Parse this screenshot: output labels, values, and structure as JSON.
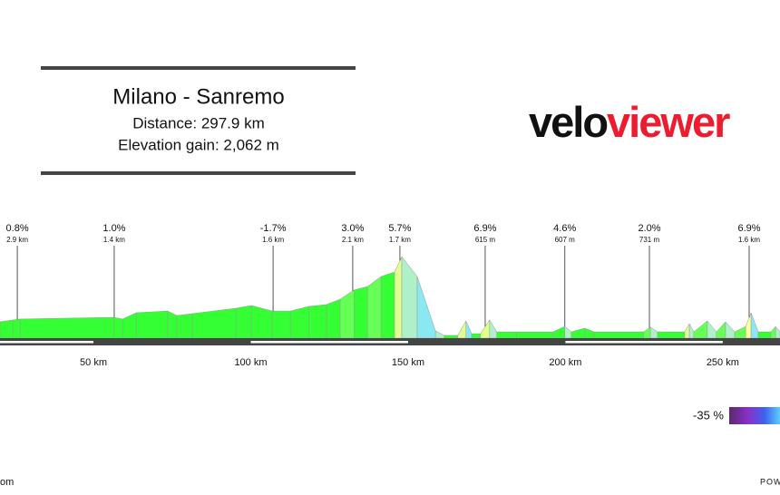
{
  "header": {
    "title": "Milano - Sanremo",
    "distance": "Distance: 297.9 km",
    "elevation_gain": "Elevation gain: 2,062 m"
  },
  "logo": {
    "part1": "velo",
    "part2": "viewer"
  },
  "chart_data": {
    "type": "area",
    "x": [
      20.3,
      24.4,
      26.7,
      56.4,
      59.3,
      63.6,
      73.6,
      76.5,
      81.4,
      95.3,
      100.2,
      106.8,
      112.6,
      118.4,
      124.1,
      128.4,
      132.8,
      137.1,
      141.4,
      145.7,
      148.0,
      152.9,
      158.7,
      161.5,
      165.8,
      168.4,
      170.2,
      173.0,
      175.9,
      178.2,
      184.5,
      196.1,
      199.8,
      201.9,
      206.2,
      209.1,
      224.9,
      227.0,
      229.3,
      237.9,
      239.4,
      240.8,
      245.1,
      248.0,
      250.9,
      253.8,
      257.3,
      259.0,
      261.3,
      265.3,
      266.8,
      268.2
    ],
    "values": [
      106,
      118,
      124,
      135,
      124,
      165,
      176,
      147,
      159,
      194,
      212,
      176,
      176,
      206,
      218,
      253,
      312,
      335,
      400,
      429,
      529,
      400,
      47,
      18,
      18,
      112,
      29,
      29,
      118,
      41,
      41,
      41,
      76,
      41,
      65,
      41,
      41,
      71,
      41,
      41,
      94,
      41,
      112,
      41,
      106,
      41,
      76,
      165,
      41,
      41,
      76,
      41
    ],
    "xlim": [
      20.3,
      268.2
    ],
    "ylim": [
      0,
      600
    ],
    "xticks": [
      {
        "value": 50,
        "label": "50 km"
      },
      {
        "value": 100,
        "label": "100 km"
      },
      {
        "value": 150,
        "label": "150 km"
      },
      {
        "value": 200,
        "label": "200 km"
      },
      {
        "value": 250,
        "label": "250 km"
      }
    ],
    "annotations": [
      {
        "x": 25.8,
        "grade": "0.8%",
        "length": "2.9 km"
      },
      {
        "x": 56.6,
        "grade": "1.0%",
        "length": "1.4 km"
      },
      {
        "x": 107.1,
        "grade": "-1.7%",
        "length": "1.6 km"
      },
      {
        "x": 132.4,
        "grade": "3.0%",
        "length": "2.1 km"
      },
      {
        "x": 147.4,
        "grade": "5.7%",
        "length": "1.7 km"
      },
      {
        "x": 174.5,
        "grade": "6.9%",
        "length": "615 m"
      },
      {
        "x": 199.8,
        "grade": "4.6%",
        "length": "607 m"
      },
      {
        "x": 226.7,
        "grade": "2.0%",
        "length": "731 m"
      },
      {
        "x": 258.4,
        "grade": "6.9%",
        "length": "1.6 km"
      }
    ]
  },
  "legend": {
    "label": "-35 %"
  },
  "footer": {
    "left": "om",
    "right": "POW"
  }
}
